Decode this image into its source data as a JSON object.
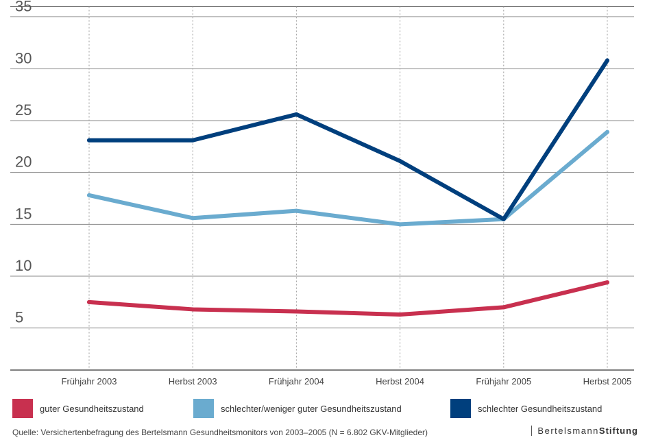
{
  "chart_data": {
    "type": "line",
    "categories": [
      "Frühjahr 2003",
      "Herbst 2003",
      "Frühjahr 2004",
      "Herbst 2004",
      "Frühjahr 2005",
      "Herbst 2005"
    ],
    "y_ticks": [
      "5",
      "10",
      "15",
      "20",
      "25",
      "30",
      "35"
    ],
    "ylim": [
      2,
      36
    ],
    "grid": true,
    "series": [
      {
        "name": "guter Gesundheitszustand",
        "color": "#c8304f",
        "values": [
          7.5,
          6.8,
          6.6,
          6.3,
          7.0,
          9.4
        ]
      },
      {
        "name": "schlechter/weniger guter Gesundheitszustand",
        "color": "#6aabcf",
        "values": [
          17.8,
          15.6,
          16.3,
          15.0,
          15.5,
          23.9
        ]
      },
      {
        "name": "schlechter Gesundheitszustand",
        "color": "#003f7d",
        "values": [
          23.1,
          23.1,
          25.6,
          21.1,
          15.5,
          30.8
        ]
      }
    ],
    "legend_position": "bottom"
  },
  "footer": {
    "source": "Quelle: Versichertenbefragung des Bertelsmann Gesundheitsmonitors von 2003–2005 (N = 6.802 GKV-Mitglieder)",
    "brand_regular": "Bertelsmann",
    "brand_bold": "Stiftung"
  }
}
